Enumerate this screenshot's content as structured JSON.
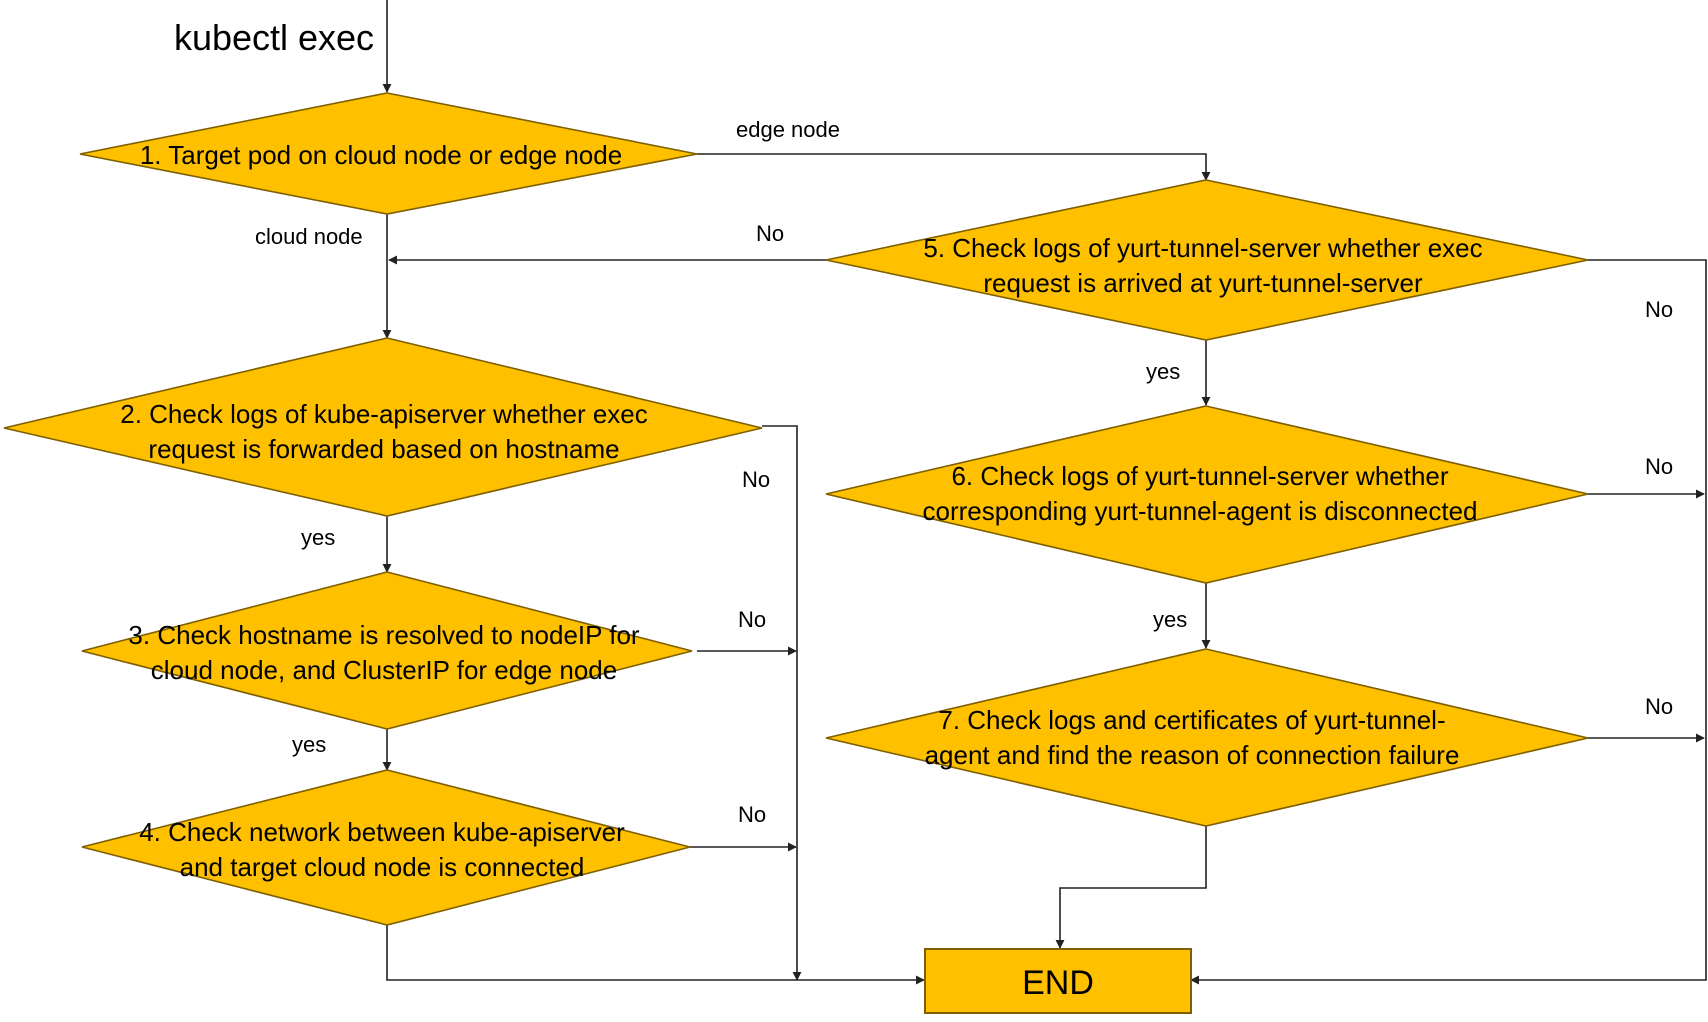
{
  "start": {
    "label": "kubectl exec"
  },
  "nodes": {
    "n1": {
      "line1": "1. Target pod on cloud node or edge node",
      "line2": ""
    },
    "n2": {
      "line1": "2. Check logs of kube-apiserver whether exec",
      "line2": "request is forwarded based on hostname"
    },
    "n3": {
      "line1": "3. Check hostname is resolved to nodeIP for",
      "line2": "cloud node, and ClusterIP for edge node"
    },
    "n4": {
      "line1": "4. Check network between kube-apiserver",
      "line2": "and target cloud node is connected"
    },
    "n5": {
      "line1": "5. Check logs of yurt-tunnel-server whether exec",
      "line2": "request is arrived at yurt-tunnel-server"
    },
    "n6": {
      "line1": "6. Check logs of yurt-tunnel-server whether",
      "line2": "corresponding  yurt-tunnel-agent is disconnected"
    },
    "n7": {
      "line1": "7. Check logs and certificates of yurt-tunnel-",
      "line2": "agent and find the reason of connection failure"
    }
  },
  "end": {
    "label": "END"
  },
  "edges": {
    "edge_node": "edge node",
    "cloud_node": "cloud node",
    "n5_no_left": "No",
    "n5_no_right": "No",
    "n2_no": "No",
    "n2_yes": "yes",
    "n3_no": "No",
    "n3_yes": "yes",
    "n4_no": "No",
    "n5_yes": "yes",
    "n6_no": "No",
    "n6_yes": "yes",
    "n7_no": "No"
  },
  "colors": {
    "decision_fill": "#FFC000",
    "decision_stroke": "#7F6000",
    "connector": "#222222"
  }
}
